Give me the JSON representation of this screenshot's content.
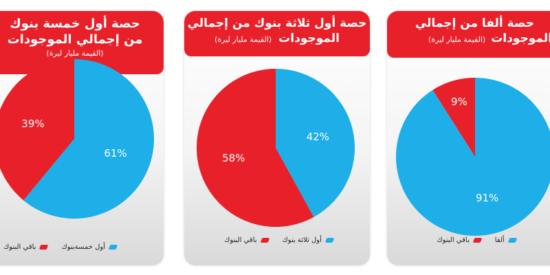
{
  "colors": {
    "blue": "#1eaee8",
    "red": "#e8202a"
  },
  "chart_data": [
    {
      "type": "pie",
      "title_line1": "حصة أول خمسة بنوك",
      "title_line2": "من إجمالي الموجودات",
      "subtitle": "(القيمة مليار ليرة)",
      "slices": [
        {
          "label": "أول خمسةبنوك",
          "value": 61,
          "display": "61%",
          "color": "#1eaee8"
        },
        {
          "label": "باقي البنوك",
          "value": 39,
          "display": "39%",
          "color": "#e8202a"
        }
      ]
    },
    {
      "type": "pie",
      "title_line1": "حصة أول ثلاثة بنوك من إجمالي",
      "title_line2": "الموجودات",
      "subtitle": "(القيمة مليار ليرة)",
      "slices": [
        {
          "label": "أول ثلاثة بنوك",
          "value": 42,
          "display": "42%",
          "color": "#1eaee8"
        },
        {
          "label": "باقي البنوك",
          "value": 58,
          "display": "58%",
          "color": "#e8202a"
        }
      ]
    },
    {
      "type": "pie",
      "title_line1": "حصة ألفا من إجمالي",
      "title_line2": "الموجودات",
      "subtitle": "(القيمة مليار ليرة)",
      "slices": [
        {
          "label": "ألفا",
          "value": 91,
          "display": "91%",
          "color": "#1eaee8"
        },
        {
          "label": "باقي البنوك",
          "value": 9,
          "display": "9%",
          "color": "#e8202a"
        }
      ]
    }
  ]
}
